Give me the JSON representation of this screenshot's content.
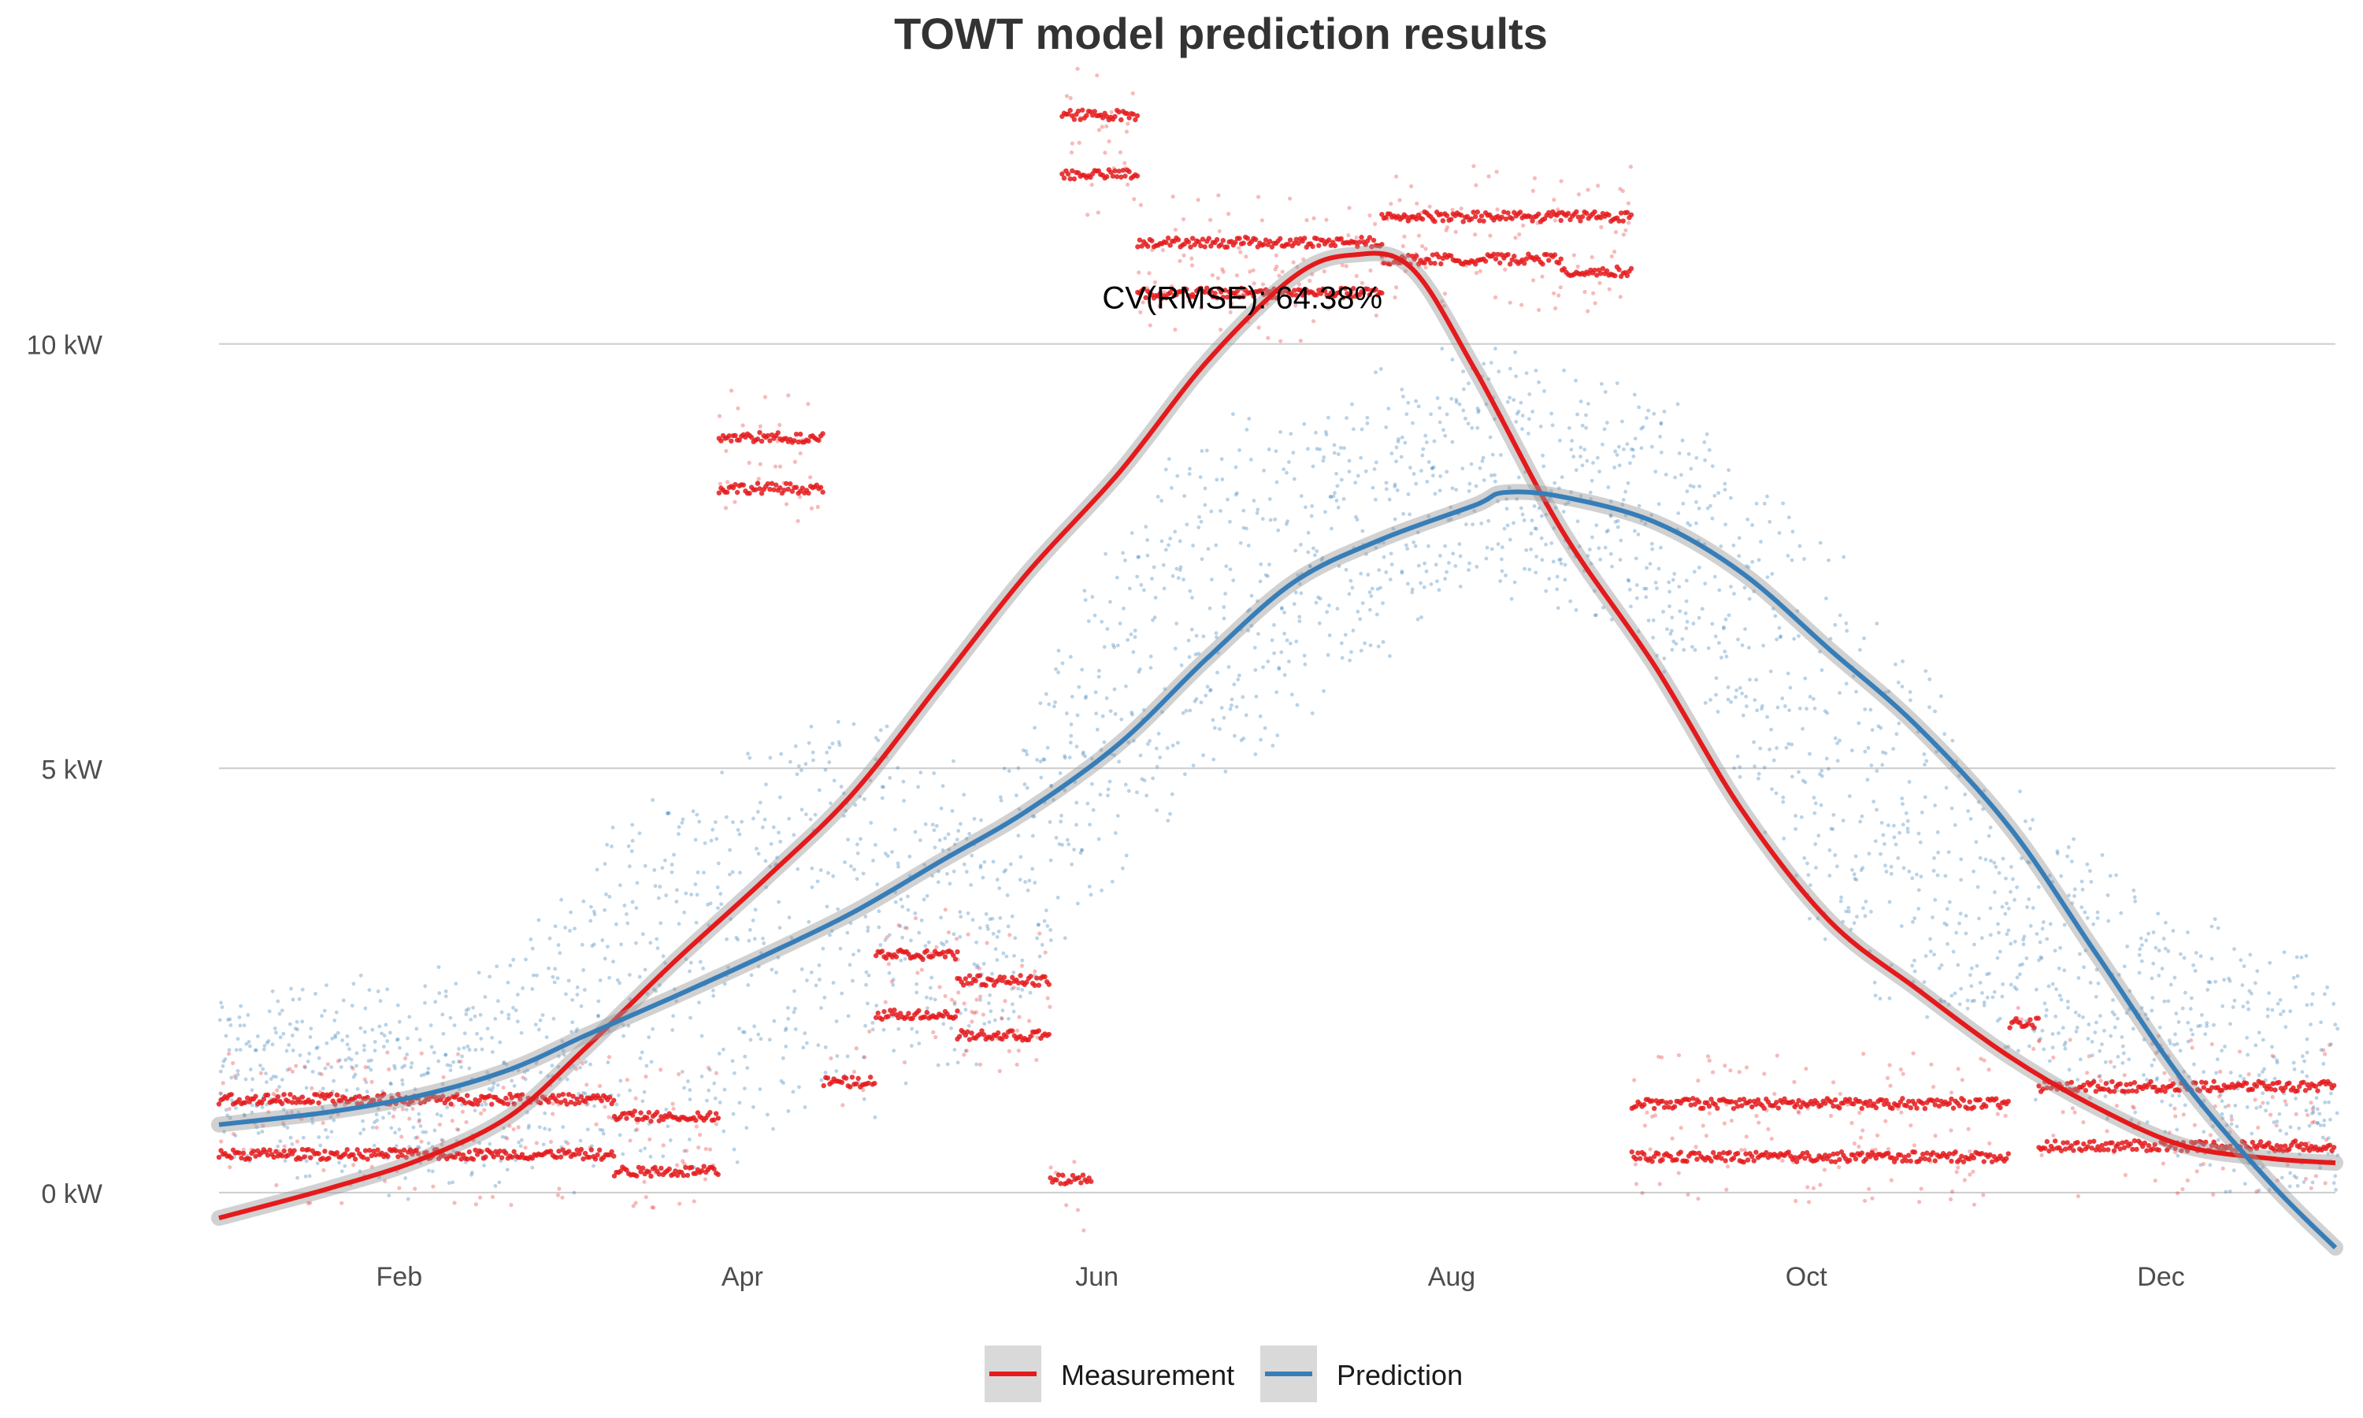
{
  "chart_data": {
    "type": "scatter",
    "title": "TOWT model prediction results",
    "xlabel": "",
    "ylabel": "",
    "x_range": [
      "2021-01-01",
      "2021-12-31"
    ],
    "ylim": [
      -0.8,
      13.2
    ],
    "y_ticks": [
      {
        "value": 0,
        "label": "0 kW"
      },
      {
        "value": 5,
        "label": "5 kW"
      },
      {
        "value": 10,
        "label": "10 kW"
      }
    ],
    "x_ticks": [
      {
        "date": "2021-02-01",
        "label": "Feb"
      },
      {
        "date": "2021-04-01",
        "label": "Apr"
      },
      {
        "date": "2021-06-01",
        "label": "Jun"
      },
      {
        "date": "2021-08-01",
        "label": "Aug"
      },
      {
        "date": "2021-10-01",
        "label": "Oct"
      },
      {
        "date": "2021-12-01",
        "label": "Dec"
      }
    ],
    "grid": "horizontal major",
    "annotation": {
      "text": "CV(RMSE): 64.38%",
      "x": "2021-06-26",
      "y": 10.55
    },
    "legend_position": "bottom",
    "series": [
      {
        "name": "Measurement",
        "color": "#e41a1c",
        "smooth": [
          {
            "x": "2021-01-01",
            "y": -0.3
          },
          {
            "x": "2021-01-20",
            "y": 0.05
          },
          {
            "x": "2021-02-05",
            "y": 0.4
          },
          {
            "x": "2021-02-20",
            "y": 0.9
          },
          {
            "x": "2021-03-05",
            "y": 1.7
          },
          {
            "x": "2021-03-20",
            "y": 2.7
          },
          {
            "x": "2021-04-05",
            "y": 3.7
          },
          {
            "x": "2021-04-20",
            "y": 4.7
          },
          {
            "x": "2021-05-05",
            "y": 6.0
          },
          {
            "x": "2021-05-20",
            "y": 7.3
          },
          {
            "x": "2021-06-05",
            "y": 8.5
          },
          {
            "x": "2021-06-20",
            "y": 9.8
          },
          {
            "x": "2021-07-05",
            "y": 10.8
          },
          {
            "x": "2021-07-15",
            "y": 11.05
          },
          {
            "x": "2021-07-25",
            "y": 10.9
          },
          {
            "x": "2021-08-05",
            "y": 9.7
          },
          {
            "x": "2021-08-20",
            "y": 7.8
          },
          {
            "x": "2021-09-05",
            "y": 6.2
          },
          {
            "x": "2021-09-20",
            "y": 4.5
          },
          {
            "x": "2021-10-05",
            "y": 3.2
          },
          {
            "x": "2021-10-20",
            "y": 2.4
          },
          {
            "x": "2021-11-05",
            "y": 1.6
          },
          {
            "x": "2021-11-20",
            "y": 1.0
          },
          {
            "x": "2021-12-05",
            "y": 0.55
          },
          {
            "x": "2021-12-20",
            "y": 0.4
          },
          {
            "x": "2021-12-31",
            "y": 0.35
          }
        ],
        "points": [
          {
            "x_start": "2021-01-01",
            "x_end": "2021-03-10",
            "y": 1.1
          },
          {
            "x_start": "2021-01-01",
            "x_end": "2021-03-10",
            "y": 0.45
          },
          {
            "x_start": "2021-03-10",
            "x_end": "2021-03-28",
            "y": 0.9
          },
          {
            "x_start": "2021-03-10",
            "x_end": "2021-03-28",
            "y": 0.25
          },
          {
            "x_start": "2021-03-28",
            "x_end": "2021-04-15",
            "y": 8.9
          },
          {
            "x_start": "2021-03-28",
            "x_end": "2021-04-15",
            "y": 8.3
          },
          {
            "x_start": "2021-04-15",
            "x_end": "2021-04-24",
            "y": 1.3
          },
          {
            "x_start": "2021-04-24",
            "x_end": "2021-05-08",
            "y": 2.8
          },
          {
            "x_start": "2021-04-24",
            "x_end": "2021-05-08",
            "y": 2.1
          },
          {
            "x_start": "2021-05-08",
            "x_end": "2021-05-24",
            "y": 2.5
          },
          {
            "x_start": "2021-05-08",
            "x_end": "2021-05-24",
            "y": 1.85
          },
          {
            "x_start": "2021-05-24",
            "x_end": "2021-05-31",
            "y": 0.15
          },
          {
            "x_start": "2021-05-26",
            "x_end": "2021-06-08",
            "y": 12.0
          },
          {
            "x_start": "2021-05-26",
            "x_end": "2021-06-08",
            "y": 12.7
          },
          {
            "x_start": "2021-06-08",
            "x_end": "2021-07-20",
            "y": 11.2
          },
          {
            "x_start": "2021-06-08",
            "x_end": "2021-07-20",
            "y": 10.6
          },
          {
            "x_start": "2021-07-20",
            "x_end": "2021-08-20",
            "y": 11.5
          },
          {
            "x_start": "2021-07-20",
            "x_end": "2021-08-20",
            "y": 11.0
          },
          {
            "x_start": "2021-08-20",
            "x_end": "2021-09-01",
            "y": 11.5
          },
          {
            "x_start": "2021-08-20",
            "x_end": "2021-09-01",
            "y": 10.85
          },
          {
            "x_start": "2021-09-01",
            "x_end": "2021-11-05",
            "y": 1.05
          },
          {
            "x_start": "2021-09-01",
            "x_end": "2021-11-05",
            "y": 0.42
          },
          {
            "x_start": "2021-11-05",
            "x_end": "2021-11-10",
            "y": 2.0
          },
          {
            "x_start": "2021-11-10",
            "x_end": "2021-12-31",
            "y": 1.25
          },
          {
            "x_start": "2021-11-10",
            "x_end": "2021-12-31",
            "y": 0.55
          }
        ]
      },
      {
        "name": "Prediction",
        "color": "#377eb8",
        "smooth": [
          {
            "x": "2021-01-01",
            "y": 0.8
          },
          {
            "x": "2021-01-20",
            "y": 0.95
          },
          {
            "x": "2021-02-05",
            "y": 1.15
          },
          {
            "x": "2021-02-20",
            "y": 1.45
          },
          {
            "x": "2021-03-05",
            "y": 1.85
          },
          {
            "x": "2021-03-20",
            "y": 2.3
          },
          {
            "x": "2021-04-05",
            "y": 2.8
          },
          {
            "x": "2021-04-20",
            "y": 3.3
          },
          {
            "x": "2021-05-05",
            "y": 3.9
          },
          {
            "x": "2021-05-20",
            "y": 4.5
          },
          {
            "x": "2021-06-05",
            "y": 5.3
          },
          {
            "x": "2021-06-20",
            "y": 6.3
          },
          {
            "x": "2021-07-05",
            "y": 7.2
          },
          {
            "x": "2021-07-20",
            "y": 7.7
          },
          {
            "x": "2021-08-05",
            "y": 8.1
          },
          {
            "x": "2021-08-10",
            "y": 8.25
          },
          {
            "x": "2021-08-20",
            "y": 8.2
          },
          {
            "x": "2021-09-05",
            "y": 7.9
          },
          {
            "x": "2021-09-20",
            "y": 7.3
          },
          {
            "x": "2021-10-05",
            "y": 6.4
          },
          {
            "x": "2021-10-20",
            "y": 5.5
          },
          {
            "x": "2021-11-05",
            "y": 4.3
          },
          {
            "x": "2021-11-20",
            "y": 2.8
          },
          {
            "x": "2021-12-05",
            "y": 1.3
          },
          {
            "x": "2021-12-20",
            "y": 0.1
          },
          {
            "x": "2021-12-31",
            "y": -0.65
          }
        ],
        "envelope": [
          {
            "x": "2021-01-01",
            "low": 0.6,
            "high": 2.1
          },
          {
            "x": "2021-02-15",
            "low": 0.2,
            "high": 2.4
          },
          {
            "x": "2021-03-15",
            "low": 0.5,
            "high": 4.5
          },
          {
            "x": "2021-04-15",
            "low": 0.8,
            "high": 5.5
          },
          {
            "x": "2021-05-15",
            "low": 1.8,
            "high": 4.8
          },
          {
            "x": "2021-06-10",
            "low": 4.5,
            "high": 8.5
          },
          {
            "x": "2021-07-10",
            "low": 6.0,
            "high": 9.2
          },
          {
            "x": "2021-08-05",
            "low": 7.5,
            "high": 9.8
          },
          {
            "x": "2021-09-05",
            "low": 6.5,
            "high": 9.3
          },
          {
            "x": "2021-10-05",
            "low": 3.0,
            "high": 7.5
          },
          {
            "x": "2021-11-05",
            "low": 1.5,
            "high": 4.5
          },
          {
            "x": "2021-12-05",
            "low": 0.5,
            "high": 3.0
          },
          {
            "x": "2021-12-31",
            "low": 0.0,
            "high": 2.5
          }
        ]
      }
    ]
  },
  "legend": {
    "items": [
      {
        "label": "Measurement",
        "color": "#e41a1c"
      },
      {
        "label": "Prediction",
        "color": "#377eb8"
      }
    ]
  }
}
